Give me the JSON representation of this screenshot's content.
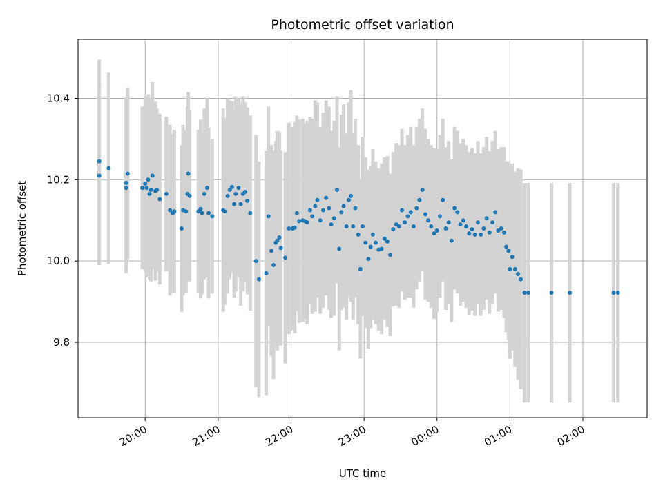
{
  "chart_data": {
    "type": "scatter",
    "title": "Photometric offset variation",
    "xlabel": "UTC time",
    "ylabel": "Photometric offset",
    "x_unit": "UTC time (hours; values of 24 and above fall after midnight)",
    "xlim": [
      19.08,
      26.88
    ],
    "ylim": [
      9.615,
      10.545
    ],
    "xticks": [
      20,
      21,
      22,
      23,
      24,
      25,
      26
    ],
    "xtick_labels": [
      "20:00",
      "21:00",
      "22:00",
      "23:00",
      "00:00",
      "01:00",
      "02:00"
    ],
    "yticks": [
      9.8,
      10.0,
      10.2,
      10.4
    ],
    "ytick_labels": [
      "9.8",
      "10.0",
      "10.2",
      "10.4"
    ],
    "grid": true,
    "colors": {
      "points": "#1f77b4",
      "errorbars": "#d3d3d3",
      "grid": "#b0b0b0"
    },
    "series": [
      {
        "x": [
          19.37,
          19.37,
          19.5,
          19.74,
          19.74,
          19.76,
          19.96,
          20.0,
          20.02,
          20.04,
          20.06,
          20.08,
          20.1,
          20.14,
          20.16,
          20.2,
          20.29,
          20.34,
          20.38,
          20.4,
          20.5,
          20.52,
          20.56,
          20.58,
          20.59,
          20.61,
          20.73,
          20.76,
          20.78,
          20.81,
          20.85,
          20.87,
          20.92,
          21.07,
          21.09,
          21.13,
          21.16,
          21.19,
          21.22,
          21.24,
          21.28,
          21.31,
          21.34,
          21.37,
          21.4,
          21.44,
          21.52,
          21.56,
          21.66,
          21.69,
          21.73,
          21.76,
          21.79,
          21.81,
          21.84,
          21.86,
          21.92,
          21.97,
          22.02,
          22.05,
          22.08,
          22.11,
          22.16,
          22.19,
          22.22,
          22.26,
          22.29,
          22.33,
          22.36,
          22.4,
          22.44,
          22.48,
          22.52,
          22.55,
          22.59,
          22.63,
          22.66,
          22.69,
          22.72,
          22.76,
          22.79,
          22.82,
          22.85,
          22.88,
          22.92,
          22.95,
          22.98,
          23.02,
          23.06,
          23.09,
          23.12,
          23.16,
          23.2,
          23.24,
          23.28,
          23.32,
          23.36,
          23.4,
          23.44,
          23.48,
          23.52,
          23.56,
          23.6,
          23.64,
          23.68,
          23.72,
          23.76,
          23.8,
          23.84,
          23.88,
          23.92,
          23.96,
          24.0,
          24.04,
          24.08,
          24.12,
          24.16,
          24.2,
          24.24,
          24.28,
          24.32,
          24.36,
          24.4,
          24.44,
          24.48,
          24.52,
          24.56,
          24.6,
          24.64,
          24.68,
          24.72,
          24.76,
          24.8,
          24.84,
          24.88,
          24.92,
          24.95,
          24.98,
          25.0,
          25.03,
          25.07,
          25.11,
          25.15,
          25.2,
          25.25,
          25.57,
          25.82,
          26.42,
          26.48
        ],
        "y": [
          10.245,
          10.21,
          10.228,
          10.192,
          10.18,
          10.215,
          10.18,
          10.19,
          10.18,
          10.2,
          10.165,
          10.175,
          10.21,
          10.172,
          10.175,
          10.152,
          10.165,
          10.125,
          10.118,
          10.122,
          10.08,
          10.125,
          10.122,
          10.165,
          10.215,
          10.16,
          10.122,
          10.128,
          10.118,
          10.165,
          10.18,
          10.118,
          10.11,
          10.125,
          10.122,
          10.16,
          10.175,
          10.182,
          10.14,
          10.165,
          10.18,
          10.14,
          10.165,
          10.17,
          10.148,
          10.118,
          10.0,
          9.955,
          9.97,
          10.11,
          10.025,
          9.99,
          10.045,
          10.05,
          10.058,
          10.032,
          10.008,
          10.08,
          10.08,
          10.082,
          10.118,
          10.098,
          10.1,
          10.098,
          10.095,
          10.125,
          10.11,
          10.135,
          10.15,
          10.1,
          10.125,
          10.155,
          10.13,
          10.09,
          10.105,
          10.175,
          10.03,
          10.12,
          10.135,
          10.085,
          10.15,
          10.16,
          10.085,
          10.13,
          10.065,
          9.98,
          10.085,
          10.045,
          10.005,
          10.035,
          10.065,
          10.045,
          10.028,
          10.03,
          10.055,
          10.048,
          10.015,
          10.078,
          10.09,
          10.085,
          10.125,
          10.095,
          10.11,
          10.12,
          10.085,
          10.13,
          10.15,
          10.175,
          10.115,
          10.1,
          10.085,
          10.068,
          10.075,
          10.11,
          10.15,
          10.08,
          10.095,
          10.05,
          10.13,
          10.12,
          10.09,
          10.1,
          10.085,
          10.068,
          10.078,
          10.065,
          10.095,
          10.065,
          10.08,
          10.105,
          10.07,
          10.095,
          10.12,
          10.075,
          10.08,
          10.07,
          10.035,
          10.025,
          9.98,
          10.01,
          9.98,
          9.968,
          9.955,
          9.922,
          9.922,
          9.922,
          9.922,
          9.922,
          9.922
        ],
        "err": [
          0.25,
          0.22,
          0.235,
          0.21,
          0.21,
          0.21,
          0.2,
          0.215,
          0.22,
          0.21,
          0.21,
          0.225,
          0.23,
          0.22,
          0.2,
          0.21,
          0.19,
          0.21,
          0.195,
          0.2,
          0.205,
          0.21,
          0.2,
          0.215,
          0.2,
          0.21,
          0.2,
          0.22,
          0.2,
          0.21,
          0.22,
          0.21,
          0.19,
          0.25,
          0.23,
          0.24,
          0.22,
          0.21,
          0.23,
          0.24,
          0.22,
          0.25,
          0.24,
          0.22,
          0.23,
          0.24,
          0.31,
          0.29,
          0.3,
          0.27,
          0.26,
          0.28,
          0.25,
          0.27,
          0.26,
          0.24,
          0.26,
          0.26,
          0.25,
          0.26,
          0.24,
          0.25,
          0.25,
          0.24,
          0.25,
          0.23,
          0.24,
          0.26,
          0.24,
          0.23,
          0.24,
          0.24,
          0.25,
          0.23,
          0.24,
          0.23,
          0.25,
          0.24,
          0.25,
          0.23,
          0.24,
          0.26,
          0.23,
          0.22,
          0.22,
          0.22,
          0.22,
          0.21,
          0.22,
          0.2,
          0.21,
          0.2,
          0.2,
          0.21,
          0.2,
          0.21,
          0.2,
          0.19,
          0.2,
          0.2,
          0.2,
          0.19,
          0.2,
          0.21,
          0.2,
          0.2,
          0.2,
          0.2,
          0.21,
          0.2,
          0.2,
          0.21,
          0.2,
          0.2,
          0.2,
          0.2,
          0.2,
          0.2,
          0.2,
          0.2,
          0.2,
          0.2,
          0.2,
          0.2,
          0.2,
          0.2,
          0.2,
          0.2,
          0.2,
          0.2,
          0.2,
          0.2,
          0.2,
          0.2,
          0.2,
          0.21,
          0.21,
          0.22,
          0.22,
          0.23,
          0.24,
          0.26,
          0.27,
          0.27,
          0.27,
          0.27,
          0.27,
          0.27,
          0.27
        ]
      }
    ]
  }
}
